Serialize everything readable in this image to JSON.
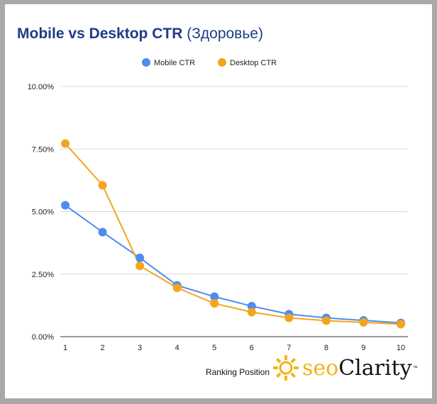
{
  "chart_data": {
    "type": "line",
    "title": "Mobile vs Desktop CTR",
    "subtitle": "(Здоровье)",
    "xlabel": "Ranking Position",
    "ylabel": "",
    "categories": [
      "1",
      "2",
      "3",
      "4",
      "5",
      "6",
      "7",
      "8",
      "9",
      "10"
    ],
    "y_ticks": [
      "0.00%",
      "2.50%",
      "5.00%",
      "7.50%",
      "10.00%"
    ],
    "ylim": [
      0,
      10
    ],
    "grid": true,
    "legend_position": "top",
    "series": [
      {
        "name": "Mobile CTR",
        "color": "#4e8ded",
        "values": [
          5.25,
          4.18,
          3.15,
          2.05,
          1.6,
          1.22,
          0.9,
          0.75,
          0.65,
          0.55
        ]
      },
      {
        "name": "Desktop CTR",
        "color": "#f5a51d",
        "values": [
          7.72,
          6.05,
          2.83,
          1.95,
          1.33,
          0.98,
          0.75,
          0.64,
          0.57,
          0.5
        ]
      }
    ]
  },
  "brand": {
    "seo": "seo",
    "clarity": "Clarity",
    "tm": "™",
    "icon": "sun-gear-icon",
    "color": "#f3b416"
  }
}
